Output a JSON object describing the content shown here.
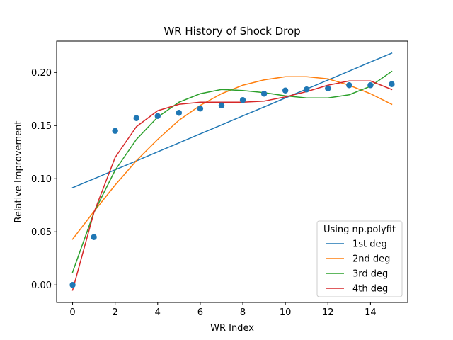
{
  "chart_data": {
    "type": "scatter",
    "title": "WR History of Shock Drop",
    "xlabel": "WR Index",
    "ylabel": "Relative Improvement",
    "xlim": [
      -0.75,
      15.75
    ],
    "ylim": [
      -0.0165,
      0.2295
    ],
    "xticks": [
      0,
      2,
      4,
      6,
      8,
      10,
      12,
      14
    ],
    "yticks": [
      0.0,
      0.05,
      0.1,
      0.15,
      0.2
    ],
    "ytick_labels": [
      "0.00",
      "0.05",
      "0.10",
      "0.15",
      "0.20"
    ],
    "grid": false,
    "points": {
      "x": [
        0,
        1,
        2,
        3,
        4,
        5,
        6,
        7,
        8,
        9,
        10,
        11,
        12,
        13,
        14,
        15
      ],
      "y": [
        0.0,
        0.045,
        0.145,
        0.157,
        0.159,
        0.162,
        0.166,
        0.169,
        0.174,
        0.18,
        0.183,
        0.184,
        0.185,
        0.188,
        0.188,
        0.189
      ],
      "color": "#1f77b4"
    },
    "legend": {
      "title": "Using np.polyfit",
      "position": "lower right"
    },
    "series": [
      {
        "name": "1st deg",
        "color": "#1f77b4",
        "x": [
          0,
          1,
          2,
          3,
          4,
          5,
          6,
          7,
          8,
          9,
          10,
          11,
          12,
          13,
          14,
          15
        ],
        "y": [
          0.0915,
          0.0999,
          0.1084,
          0.1168,
          0.1253,
          0.1337,
          0.1422,
          0.1506,
          0.1591,
          0.1675,
          0.176,
          0.1844,
          0.1929,
          0.2013,
          0.2098,
          0.2182
        ]
      },
      {
        "name": "2nd deg",
        "color": "#ff7f0e",
        "x": [
          0,
          1,
          2,
          3,
          4,
          5,
          6,
          7,
          8,
          9,
          10,
          11,
          12,
          13,
          14,
          15
        ],
        "y": [
          0.043,
          0.069,
          0.094,
          0.117,
          0.137,
          0.155,
          0.169,
          0.18,
          0.188,
          0.193,
          0.196,
          0.196,
          0.194,
          0.188,
          0.18,
          0.17
        ]
      },
      {
        "name": "3rd deg",
        "color": "#2ca02c",
        "x": [
          0,
          1,
          2,
          3,
          4,
          5,
          6,
          7,
          8,
          9,
          10,
          11,
          12,
          13,
          14,
          15
        ],
        "y": [
          0.012,
          0.068,
          0.108,
          0.137,
          0.158,
          0.172,
          0.18,
          0.184,
          0.183,
          0.181,
          0.178,
          0.176,
          0.176,
          0.179,
          0.187,
          0.201
        ]
      },
      {
        "name": "4th deg",
        "color": "#d62728",
        "x": [
          0,
          1,
          2,
          3,
          4,
          5,
          6,
          7,
          8,
          9,
          10,
          11,
          12,
          13,
          14,
          15
        ],
        "y": [
          -0.005,
          0.068,
          0.12,
          0.149,
          0.164,
          0.17,
          0.172,
          0.172,
          0.172,
          0.173,
          0.177,
          0.182,
          0.188,
          0.192,
          0.192,
          0.184
        ]
      }
    ]
  }
}
